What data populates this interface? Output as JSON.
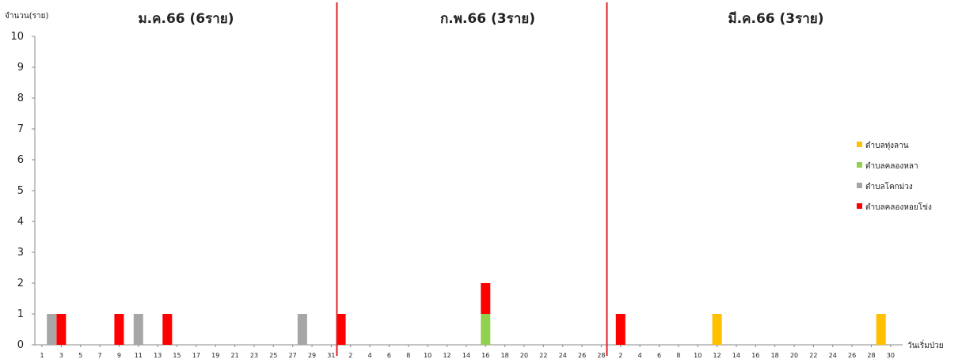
{
  "chart_data": {
    "type": "bar",
    "stacked": true,
    "ylabel": "จำนวน(ราย)",
    "xlabel": "วันเริ่มป่วย",
    "ylim": [
      0,
      10
    ],
    "yticks": [
      0,
      1,
      2,
      3,
      4,
      5,
      6,
      7,
      8,
      9,
      10
    ],
    "grid": false,
    "legend_position": "right",
    "months": [
      {
        "title": "ม.ค.66 (6ราย)",
        "days": 31,
        "tick_labels": [
          "1",
          "3",
          "5",
          "7",
          "9",
          "11",
          "13",
          "15",
          "17",
          "19",
          "21",
          "23",
          "25",
          "27",
          "29",
          "31"
        ]
      },
      {
        "title": "ก.พ.66 (3ราย)",
        "days": 28,
        "tick_labels": [
          "2",
          "4",
          "6",
          "8",
          "10",
          "12",
          "14",
          "16",
          "18",
          "20",
          "22",
          "24",
          "26",
          "28"
        ]
      },
      {
        "title": "มี.ค.66 (3ราย)",
        "days": 31,
        "tick_labels": [
          "2",
          "4",
          "6",
          "8",
          "10",
          "12",
          "14",
          "16",
          "18",
          "20",
          "22",
          "24",
          "26",
          "28",
          "30"
        ]
      }
    ],
    "divider_color": "#e02020",
    "series": [
      {
        "name": "ตำบลทุ่งลาน",
        "color": "#ffc000",
        "points": [
          {
            "month": 2,
            "day": 12,
            "value": 1
          },
          {
            "month": 2,
            "day": 29,
            "value": 1
          }
        ]
      },
      {
        "name": "ตำบลคลองหลา",
        "color": "#92d050",
        "points": [
          {
            "month": 1,
            "day": 16,
            "value": 1
          }
        ]
      },
      {
        "name": "ตำบลโคกม่วง",
        "color": "#a6a6a6",
        "points": [
          {
            "month": 0,
            "day": 2,
            "value": 1
          },
          {
            "month": 0,
            "day": 11,
            "value": 1
          },
          {
            "month": 0,
            "day": 28,
            "value": 1
          }
        ]
      },
      {
        "name": "ตำบลคลองหอยโข่ง",
        "color": "#ff0000",
        "points": [
          {
            "month": 0,
            "day": 3,
            "value": 1
          },
          {
            "month": 0,
            "day": 9,
            "value": 1
          },
          {
            "month": 0,
            "day": 14,
            "value": 1
          },
          {
            "month": 1,
            "day": 1,
            "value": 1
          },
          {
            "month": 1,
            "day": 16,
            "value": 1
          },
          {
            "month": 2,
            "day": 2,
            "value": 1
          }
        ]
      }
    ]
  }
}
